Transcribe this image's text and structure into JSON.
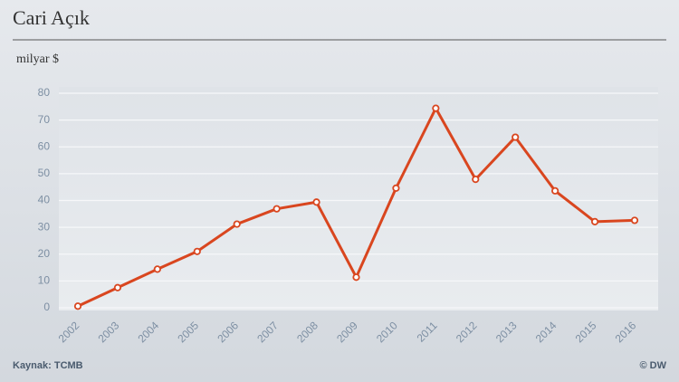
{
  "chart_data": {
    "type": "line",
    "title": "Cari Açık",
    "ylabel": "milyar $",
    "categories": [
      "2002",
      "2003",
      "2004",
      "2005",
      "2006",
      "2007",
      "2008",
      "2009",
      "2010",
      "2011",
      "2012",
      "2013",
      "2014",
      "2015",
      "2016"
    ],
    "series": [
      {
        "name": "Cari Açık",
        "color": "#d9461f",
        "values": [
          0.6,
          7.5,
          14.4,
          21.0,
          31.2,
          36.9,
          39.4,
          11.4,
          44.6,
          74.4,
          47.9,
          63.6,
          43.6,
          32.1,
          32.6
        ]
      }
    ],
    "ylim": [
      0,
      80
    ],
    "yticks": [
      0,
      10,
      20,
      30,
      40,
      50,
      60,
      70,
      80
    ],
    "grid": true,
    "source": "Kaynak: TCMB",
    "credit": "© DW"
  }
}
